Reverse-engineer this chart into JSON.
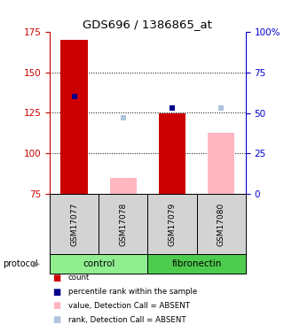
{
  "title": "GDS696 / 1386865_at",
  "samples": [
    "GSM17077",
    "GSM17078",
    "GSM17079",
    "GSM17080"
  ],
  "ylim_left": [
    75,
    175
  ],
  "ylim_right": [
    0,
    100
  ],
  "yticks_left": [
    75,
    100,
    125,
    150,
    175
  ],
  "yticks_right": [
    0,
    25,
    50,
    75,
    100
  ],
  "ytick_labels_right": [
    "0",
    "25",
    "50",
    "75",
    "100%"
  ],
  "red_bars": {
    "GSM17077": 170,
    "GSM17079": 125
  },
  "blue_squares": {
    "GSM17077": 135,
    "GSM17079": 128
  },
  "pink_bars": {
    "GSM17078": 85,
    "GSM17080": 113
  },
  "light_blue_squares": {
    "GSM17078": 122,
    "GSM17080": 128
  },
  "bar_bottom": 75,
  "grid_lines": [
    100,
    125,
    150
  ],
  "protocol_groups": [
    {
      "label": "control",
      "samples": [
        "GSM17077",
        "GSM17078"
      ],
      "color": "#90EE90"
    },
    {
      "label": "fibronectin",
      "samples": [
        "GSM17079",
        "GSM17080"
      ],
      "color": "#4ECC4E"
    }
  ],
  "colors": {
    "red_bar": "#CC0000",
    "blue_square": "#00008B",
    "pink_bar": "#FFB6C1",
    "light_blue_square": "#B0C4DE",
    "left_axis": "#CC0000",
    "right_axis": "#0000CC",
    "sample_bg": "#D3D3D3",
    "title": "#000000",
    "protocol_text": "#000000"
  },
  "legend": [
    {
      "color": "#CC0000",
      "label": "count"
    },
    {
      "color": "#00008B",
      "label": "percentile rank within the sample"
    },
    {
      "color": "#FFB6C1",
      "label": "value, Detection Call = ABSENT"
    },
    {
      "color": "#B0C4DE",
      "label": "rank, Detection Call = ABSENT"
    }
  ]
}
